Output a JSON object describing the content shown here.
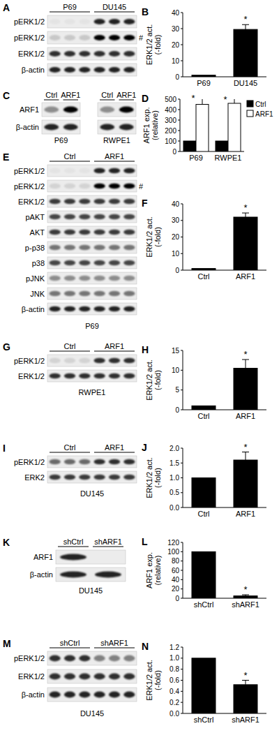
{
  "blots": [
    {
      "panel": "A",
      "groups": [
        "P69",
        "DU145"
      ],
      "rows": [
        {
          "label": "pERK1/2"
        },
        {
          "label": "pERK1/2",
          "note": "#"
        },
        {
          "label": "ERK1/2"
        },
        {
          "label": "β-actin"
        }
      ]
    },
    {
      "panel": "C",
      "panels": [
        {
          "groups": [
            "Ctrl",
            "ARF1"
          ],
          "cell_line": "P69"
        },
        {
          "groups": [
            "Ctrl",
            "ARF1"
          ],
          "cell_line": "RWPE1"
        }
      ],
      "rows": [
        {
          "label": "ARF1"
        },
        {
          "label": "β-actin"
        }
      ]
    },
    {
      "panel": "E",
      "groups": [
        "Ctrl",
        "ARF1"
      ],
      "cell_line": "P69",
      "rows": [
        {
          "label": "pERK1/2"
        },
        {
          "label": "pERK1/2",
          "note": "#"
        },
        {
          "label": "ERK1/2"
        },
        {
          "label": "pAKT"
        },
        {
          "label": "AKT"
        },
        {
          "label": "p-p38"
        },
        {
          "label": "p38"
        },
        {
          "label": "pJNK"
        },
        {
          "label": "JNK"
        },
        {
          "label": "β-actin"
        }
      ]
    },
    {
      "panel": "G",
      "groups": [
        "Ctrl",
        "ARF1"
      ],
      "cell_line": "RWPE1",
      "rows": [
        {
          "label": "pERK1/2"
        },
        {
          "label": "ERK1/2"
        }
      ]
    },
    {
      "panel": "I",
      "groups": [
        "Ctrl",
        "ARF1"
      ],
      "cell_line": "DU145",
      "rows": [
        {
          "label": "pERK1/2"
        },
        {
          "label": "ERK2"
        }
      ]
    },
    {
      "panel": "K",
      "groups": [
        "shCtrl",
        "shARF1"
      ],
      "cell_line": "DU145",
      "rows": [
        {
          "label": "ARF1"
        },
        {
          "label": "β-actin"
        }
      ]
    },
    {
      "panel": "M",
      "groups": [
        "shCtrl",
        "shARF1"
      ],
      "cell_line": "DU145",
      "rows": [
        {
          "label": "pERK1/2"
        },
        {
          "label": "ERK1/2"
        },
        {
          "label": "β-actin"
        }
      ]
    }
  ],
  "chart_data": [
    {
      "type": "bar",
      "title": "B",
      "y_label": [
        "ERK1/2 act.",
        "(-fold)"
      ],
      "categories": [
        "P69",
        "DU145"
      ],
      "values": [
        1,
        29.5
      ],
      "errors": [
        null,
        3
      ],
      "color": "#000000",
      "ylim": [
        0,
        40
      ],
      "yticks": [
        0,
        10,
        20,
        30,
        40
      ],
      "annotations": [
        {
          "text": "*",
          "category": "DU145"
        }
      ]
    },
    {
      "type": "bar",
      "title": "D",
      "y_label": [
        "ARF1 exp.",
        "(relative)"
      ],
      "categories": [
        "P69",
        "RWPE1"
      ],
      "series": [
        {
          "name": "Ctrl",
          "color": "#000000",
          "values": [
            100,
            100
          ]
        },
        {
          "name": "ARF1",
          "color": "#ffffff",
          "values": [
            450,
            460
          ],
          "errors": [
            90,
            70
          ]
        }
      ],
      "ylim": [
        0,
        500
      ],
      "yticks": [
        0,
        100,
        200,
        300,
        400,
        500
      ],
      "legend": "top-right",
      "annotations": [
        {
          "text": "*",
          "category": "P69",
          "series": "ARF1"
        },
        {
          "text": "*",
          "category": "RWPE1",
          "series": "ARF1"
        }
      ]
    },
    {
      "type": "bar",
      "title": "F",
      "y_label": [
        "ERK1/2 act.",
        "(-fold)"
      ],
      "categories": [
        "Ctrl",
        "ARF1"
      ],
      "values": [
        1,
        32
      ],
      "errors": [
        null,
        2.5
      ],
      "color": "#000000",
      "ylim": [
        0,
        40
      ],
      "yticks": [
        0,
        10,
        20,
        30,
        40
      ],
      "annotations": [
        {
          "text": "*",
          "category": "ARF1"
        }
      ]
    },
    {
      "type": "bar",
      "title": "H",
      "y_label": [
        "ERK1/2 act.",
        "(-fold)"
      ],
      "categories": [
        "Ctrl",
        "ARF1"
      ],
      "values": [
        1,
        10.5
      ],
      "errors": [
        null,
        2.2
      ],
      "color": "#000000",
      "ylim": [
        0,
        15
      ],
      "yticks": [
        0,
        5,
        10,
        15
      ],
      "annotations": [
        {
          "text": "*",
          "category": "ARF1"
        }
      ]
    },
    {
      "type": "bar",
      "title": "J",
      "y_label": [
        "ERK1/2 act.",
        "(-fold)"
      ],
      "categories": [
        "Ctrl",
        "ARF1"
      ],
      "values": [
        1,
        1.6
      ],
      "errors": [
        null,
        0.27
      ],
      "color": "#000000",
      "ylim": [
        0,
        2
      ],
      "yticks": [
        {
          "value": 0,
          "label": "0.0"
        },
        0.5,
        {
          "value": 1,
          "label": "1.0"
        },
        1.5,
        {
          "value": 2,
          "label": "2.0"
        }
      ],
      "annotations": [
        {
          "text": "*",
          "category": "ARF1"
        }
      ]
    },
    {
      "type": "bar",
      "title": "L",
      "y_label": [
        "ARF1 exp.",
        "(relative)"
      ],
      "categories": [
        "shCtrl",
        "shARF1"
      ],
      "values": [
        100,
        5
      ],
      "errors": [
        null,
        2.5
      ],
      "color": "#000000",
      "ylim": [
        0,
        120
      ],
      "yticks": [
        0,
        20,
        40,
        60,
        80,
        100,
        120
      ],
      "annotations": [
        {
          "text": "*",
          "category": "shARF1"
        }
      ]
    },
    {
      "type": "bar",
      "title": "N",
      "y_label": [
        "ERK1/2 act.",
        "(-fold)"
      ],
      "categories": [
        "shCtrl",
        "shARF1"
      ],
      "values": [
        1,
        0.52
      ],
      "errors": [
        null,
        0.08
      ],
      "color": "#000000",
      "ylim": [
        0,
        1.2
      ],
      "yticks": [
        {
          "value": 0,
          "label": "0.0"
        },
        0.2,
        0.4,
        0.6,
        0.8,
        {
          "value": 1,
          "label": "1.0"
        },
        1.2
      ],
      "annotations": [
        {
          "text": "*",
          "category": "shARF1"
        }
      ]
    }
  ]
}
